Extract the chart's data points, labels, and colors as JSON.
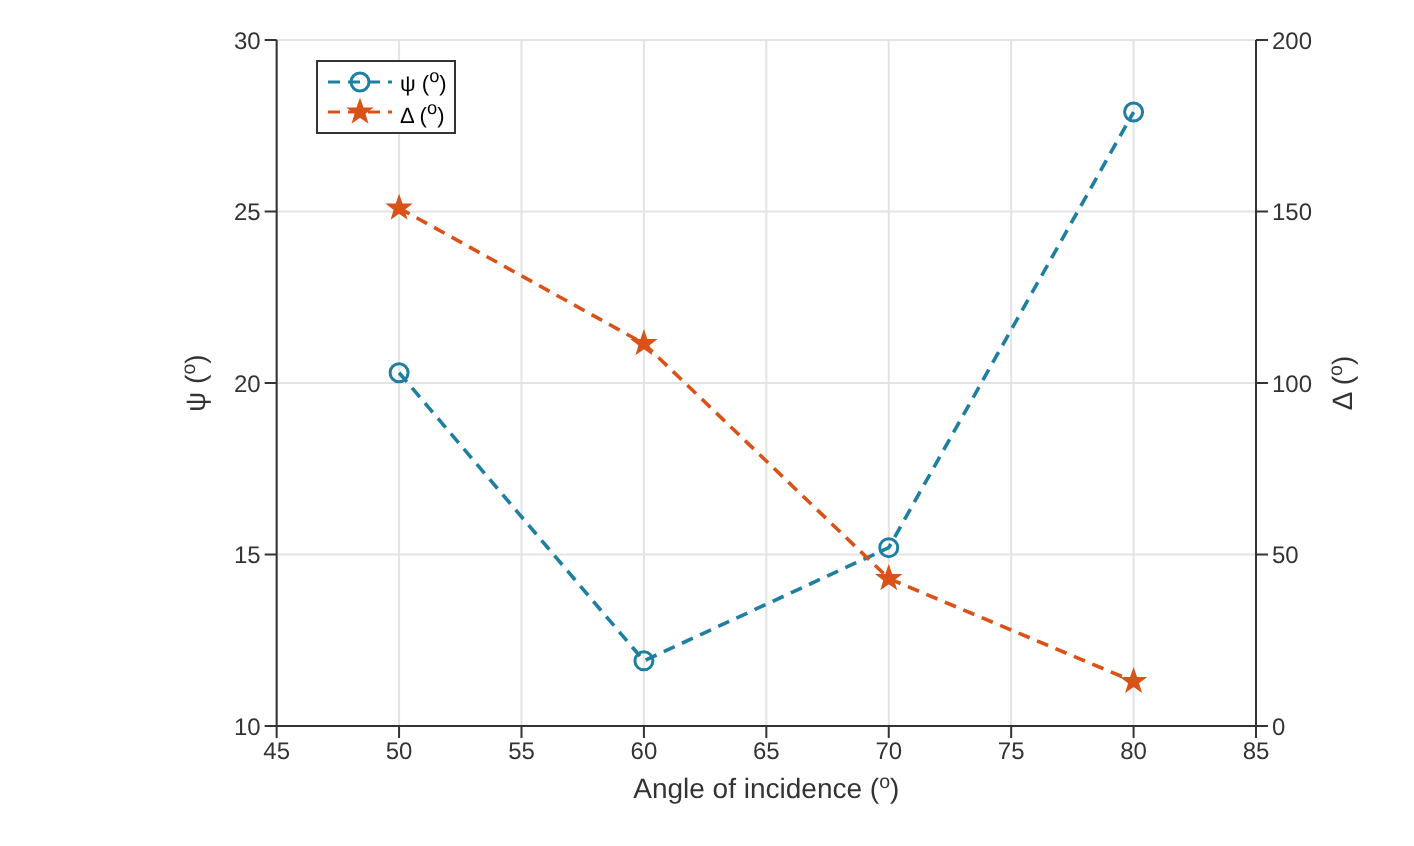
{
  "chart_data": {
    "type": "line",
    "xlabel": "Angle of incidence ($^{o}$)",
    "ylabel": "ψ ($^{o}$)",
    "y2label": "Δ ($^{o}$)",
    "x": [
      50,
      60,
      70,
      80
    ],
    "series": [
      {
        "name": "ψ ($^{o}$)",
        "color": "#1f7fa0",
        "values": [
          20.3,
          11.9,
          15.2,
          27.9
        ],
        "marker": "circle",
        "line_style": "dashed"
      },
      {
        "name": "Δ ($^{o}$)",
        "color": "#d95319",
        "values": [
          151,
          111.5,
          43,
          13
        ],
        "marker": "star",
        "line_style": "dashed",
        "axis": "y2"
      }
    ],
    "xlim": [
      45,
      85
    ],
    "xticks": [
      45,
      50,
      55,
      60,
      65,
      70,
      75,
      80,
      85
    ],
    "ylim": [
      10,
      30
    ],
    "yticks": [
      10,
      15,
      20,
      25,
      30
    ],
    "y2lim": [
      0,
      200
    ],
    "y2ticks": [
      0,
      50,
      100,
      150,
      200
    ],
    "grid": true,
    "legend": "top left"
  }
}
